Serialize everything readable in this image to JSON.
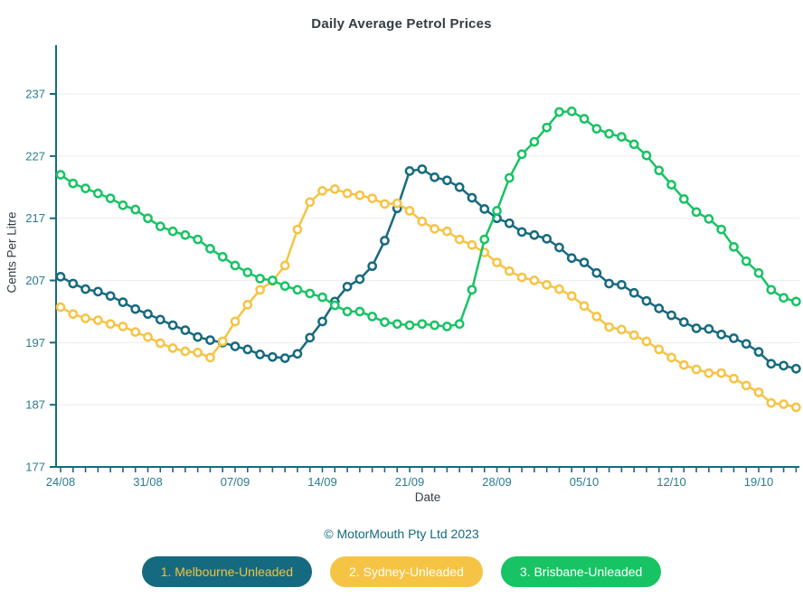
{
  "title": "Daily Average Petrol Prices",
  "footer": {
    "copyright": "© MotorMouth Pty Ltd 2023"
  },
  "legend": {
    "items": [
      {
        "label": "1. Melbourne-Unleaded",
        "bg": "#166a7f",
        "fg": "#f2c13e"
      },
      {
        "label": "2. Sydney-Unleaded",
        "bg": "#f6c445",
        "fg": "#ffffff"
      },
      {
        "label": "3. Brisbane-Unleaded",
        "bg": "#18c364",
        "fg": "#ffffff"
      }
    ]
  },
  "chart_data": {
    "type": "line",
    "title": "Daily Average Petrol Prices",
    "xlabel": "Date",
    "ylabel": "Cents Per Litre",
    "ylim": [
      177,
      245
    ],
    "yticks": [
      177,
      187,
      197,
      207,
      217,
      227,
      237
    ],
    "grid": "horizontal-only",
    "grid_color": "#ececec",
    "axis_color": "#156a7c",
    "tick_label_color": "#2a7c8e",
    "legend_position": "bottom",
    "marker": "open-circle",
    "x_tick_label_every": 7,
    "x_tick_labels": [
      "24/08",
      "31/08",
      "07/09",
      "14/09",
      "21/09",
      "28/09",
      "05/10",
      "12/10",
      "19/10"
    ],
    "x": [
      "24/08",
      "25/08",
      "26/08",
      "27/08",
      "28/08",
      "29/08",
      "30/08",
      "31/08",
      "01/09",
      "02/09",
      "03/09",
      "04/09",
      "05/09",
      "06/09",
      "07/09",
      "08/09",
      "09/09",
      "10/09",
      "11/09",
      "12/09",
      "13/09",
      "14/09",
      "15/09",
      "16/09",
      "17/09",
      "18/09",
      "19/09",
      "20/09",
      "21/09",
      "22/09",
      "23/09",
      "24/09",
      "25/09",
      "26/09",
      "27/09",
      "28/09",
      "29/09",
      "30/09",
      "01/10",
      "02/10",
      "03/10",
      "04/10",
      "05/10",
      "06/10",
      "07/10",
      "08/10",
      "09/10",
      "10/10",
      "11/10",
      "12/10",
      "13/10",
      "14/10",
      "15/10",
      "16/10",
      "17/10",
      "18/10",
      "19/10",
      "20/10",
      "21/10",
      "22/10"
    ],
    "series": [
      {
        "name": "Melbourne-Unleaded",
        "color": "#166a7f",
        "values": [
          207.6,
          206.5,
          205.6,
          205.2,
          204.5,
          203.5,
          202.4,
          201.6,
          200.7,
          199.8,
          199.0,
          197.9,
          197.4,
          197.0,
          196.4,
          195.9,
          195.1,
          194.7,
          194.5,
          195.2,
          197.8,
          200.4,
          203.6,
          206.0,
          207.2,
          209.3,
          213.4,
          218.6,
          224.6,
          224.9,
          223.6,
          223.1,
          222.0,
          220.3,
          218.5,
          217.0,
          216.2,
          214.8,
          214.3,
          213.7,
          212.3,
          210.6,
          209.9,
          208.2,
          206.5,
          206.3,
          205.0,
          203.7,
          202.5,
          201.4,
          200.3,
          199.3,
          199.2,
          198.3,
          197.7,
          196.8,
          195.5,
          193.6,
          193.3,
          192.8
        ]
      },
      {
        "name": "Sydney-Unleaded",
        "color": "#f6c445",
        "values": [
          202.7,
          201.6,
          200.9,
          200.6,
          200.0,
          199.6,
          198.7,
          197.9,
          196.9,
          196.1,
          195.6,
          195.4,
          194.6,
          197.2,
          200.4,
          203.1,
          205.5,
          206.9,
          209.4,
          215.2,
          219.6,
          221.4,
          221.7,
          221.0,
          220.7,
          220.2,
          219.3,
          219.4,
          218.2,
          216.5,
          215.3,
          214.9,
          213.6,
          212.7,
          211.5,
          209.9,
          208.5,
          207.5,
          207.0,
          206.3,
          205.6,
          204.5,
          202.9,
          201.2,
          199.5,
          199.1,
          198.2,
          197.2,
          195.9,
          194.6,
          193.4,
          192.7,
          192.1,
          192.1,
          191.2,
          190.1,
          189.0,
          187.3,
          187.1,
          186.6
        ]
      },
      {
        "name": "Brisbane-Unleaded",
        "color": "#18c364",
        "values": [
          224.0,
          222.6,
          221.8,
          221.0,
          220.2,
          219.1,
          218.4,
          217.0,
          215.7,
          214.9,
          214.3,
          213.6,
          212.1,
          210.8,
          209.4,
          208.3,
          207.3,
          207.0,
          206.1,
          205.5,
          204.9,
          204.3,
          203.0,
          202.0,
          202.0,
          201.2,
          200.3,
          200.0,
          199.8,
          200.0,
          199.8,
          199.6,
          200.0,
          205.5,
          213.6,
          218.2,
          223.5,
          227.3,
          229.3,
          231.6,
          234.1,
          234.2,
          233.0,
          231.4,
          230.6,
          230.1,
          228.9,
          227.1,
          224.7,
          222.4,
          220.1,
          218.0,
          216.9,
          215.2,
          212.4,
          210.1,
          208.2,
          205.5,
          204.2,
          203.6
        ]
      }
    ]
  }
}
